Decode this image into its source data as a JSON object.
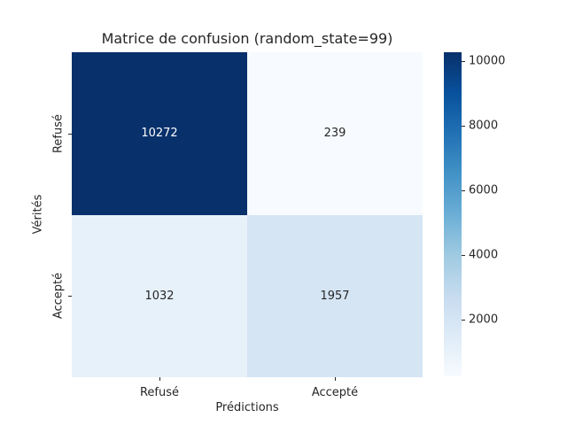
{
  "figure": {
    "background": "#ffffff",
    "text_color": "#262626"
  },
  "chart_data": {
    "type": "heatmap",
    "title": "Matrice de confusion (random_state=99)",
    "xlabel": "Prédictions",
    "ylabel": "Vérités",
    "x_categories": [
      "Refusé",
      "Accepté"
    ],
    "y_categories": [
      "Refusé",
      "Accepté"
    ],
    "values": [
      [
        10272,
        239
      ],
      [
        1032,
        1957
      ]
    ],
    "vmin": 239,
    "vmax": 10272,
    "colormap": "Blues",
    "colormap_anchors": [
      "#f7fbff",
      "#deebf7",
      "#c6dbef",
      "#9ecae1",
      "#6baed6",
      "#4292c6",
      "#2171b5",
      "#08519c",
      "#08306b"
    ],
    "colorbar_ticks": [
      2000,
      4000,
      6000,
      8000,
      10000
    ],
    "annotation_color_on_light": "#262626",
    "annotation_color_on_dark": "#ffffff",
    "grid": false,
    "legend_position": "right-colorbar"
  }
}
